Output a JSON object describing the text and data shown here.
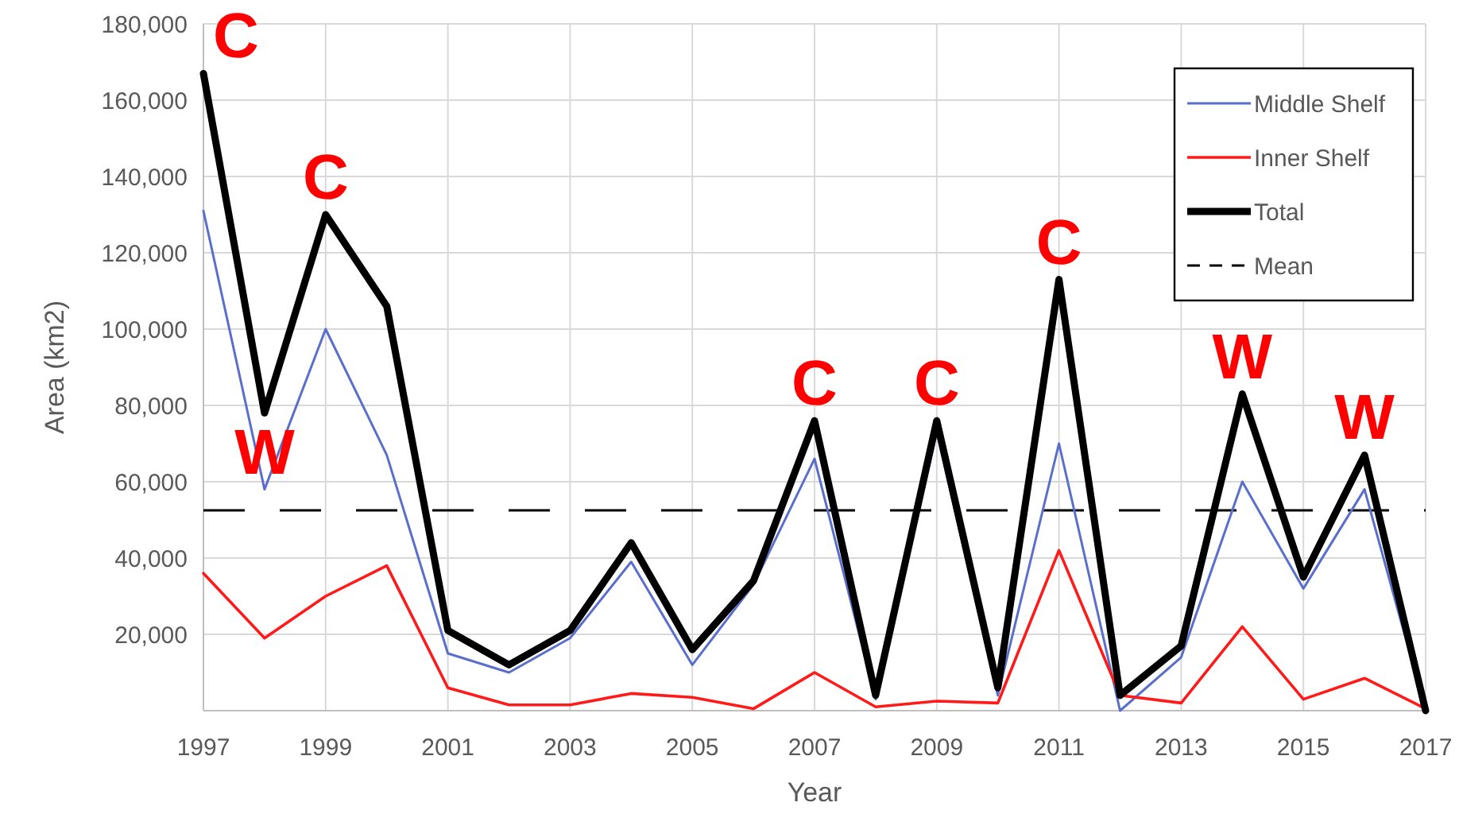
{
  "chart_data": {
    "type": "line",
    "xlabel": "Year",
    "ylabel": "Area (km2)",
    "x": [
      1997,
      1998,
      1999,
      2000,
      2001,
      2002,
      2003,
      2004,
      2005,
      2006,
      2007,
      2008,
      2009,
      2010,
      2011,
      2012,
      2013,
      2014,
      2015,
      2016,
      2017
    ],
    "series": [
      {
        "name": "Middle Shelf",
        "color": "#5a6ecb",
        "values": [
          131000,
          58000,
          100000,
          67000,
          15000,
          10000,
          19000,
          39000,
          12000,
          33000,
          66000,
          3000,
          73000,
          4000,
          70000,
          0,
          14000,
          60000,
          32000,
          58000,
          0
        ]
      },
      {
        "name": "Inner Shelf",
        "color": "#ff1a1a",
        "values": [
          36000,
          19000,
          30000,
          38000,
          6000,
          1500,
          1500,
          4500,
          3500,
          500,
          10000,
          1000,
          2500,
          2000,
          42000,
          4000,
          2000,
          22000,
          3000,
          8500,
          500
        ]
      },
      {
        "name": "Total",
        "color": "#000000",
        "values": [
          167000,
          78000,
          130000,
          106000,
          21000,
          12000,
          21000,
          44000,
          16000,
          34000,
          76000,
          4000,
          76000,
          6000,
          113000,
          4000,
          17000,
          83000,
          35000,
          67000,
          0
        ]
      }
    ],
    "ref_lines": [
      {
        "axis": "y",
        "value": 52500,
        "label": "Mean",
        "color": "#000000",
        "line_style": "dashed"
      }
    ],
    "annotations": [
      {
        "text": "C",
        "x": 1997,
        "y": 167000
      },
      {
        "text": "W",
        "x": 1998,
        "y": 58000
      },
      {
        "text": "C",
        "x": 1999,
        "y": 130000
      },
      {
        "text": "C",
        "x": 2007,
        "y": 76000
      },
      {
        "text": "C",
        "x": 2009,
        "y": 76000
      },
      {
        "text": "C",
        "x": 2011,
        "y": 113000
      },
      {
        "text": "W",
        "x": 2014,
        "y": 83000
      },
      {
        "text": "W",
        "x": 2016,
        "y": 67000
      }
    ],
    "xlim": [
      1997,
      2017
    ],
    "xticks": [
      1997,
      1999,
      2001,
      2003,
      2005,
      2007,
      2009,
      2011,
      2013,
      2015,
      2017
    ],
    "ylim": [
      0,
      180000
    ],
    "yticks": [
      {
        "value": 0,
        "label": null
      },
      {
        "value": 20000,
        "label": "20,000"
      },
      {
        "value": 40000,
        "label": "40,000"
      },
      {
        "value": 60000,
        "label": "60,000"
      },
      {
        "value": 80000,
        "label": "80,000"
      },
      {
        "value": 100000,
        "label": "100,000"
      },
      {
        "value": 120000,
        "label": "120,000"
      },
      {
        "value": 140000,
        "label": "140,000"
      },
      {
        "value": 160000,
        "label": "160,000"
      },
      {
        "value": 180000,
        "label": "180,000"
      }
    ],
    "grid": true,
    "legend": "top right",
    "marker": "none",
    "line_style": "solid"
  }
}
